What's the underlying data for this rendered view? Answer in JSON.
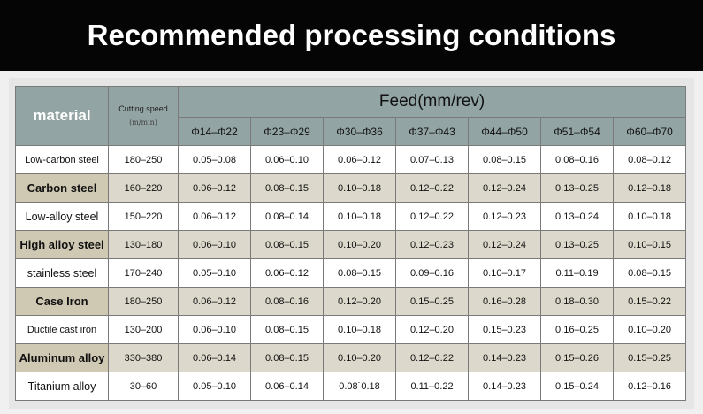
{
  "header": {
    "title": "Recommended processing conditions"
  },
  "table": {
    "material_header": "material",
    "speed_header": [
      "Cutting speed",
      "(m/min)"
    ],
    "feed_header": "Feed(mm/rev)",
    "feed_columns": [
      "Φ14–Φ22",
      "Φ23–Φ29",
      "Φ30–Φ36",
      "Φ37–Φ43",
      "Φ44–Φ50",
      "Φ51–Φ54",
      "Φ60–Φ70"
    ],
    "rows": [
      [
        "Low-carbon steel",
        "180–250",
        "0.05–0.08",
        "0.06–0.10",
        "0.06–0.12",
        "0.07–0.13",
        "0.08–0.15",
        "0.08–0.16",
        "0.08–0.12"
      ],
      [
        "Carbon steel",
        "160–220",
        "0.06–0.12",
        "0.08–0.15",
        "0.10–0.18",
        "0.12–0.22",
        "0.12–0.24",
        "0.13–0.25",
        "0.12–0.18"
      ],
      [
        "Low-alloy steel",
        "150–220",
        "0.06–0.12",
        "0.08–0.14",
        "0.10–0.18",
        "0.12–0.22",
        "0.12–0.23",
        "0.13–0.24",
        "0.10–0.18"
      ],
      [
        "High alloy steel",
        "130–180",
        "0.06–0.10",
        "0.08–0.15",
        "0.10–0.20",
        "0.12–0.23",
        "0.12–0.24",
        "0.13–0.25",
        "0.10–0.15"
      ],
      [
        "stainless steel",
        "170–240",
        "0.05–0.10",
        "0.06–0.12",
        "0.08–0.15",
        "0.09–0.16",
        "0.10–0.17",
        "0.11–0.19",
        "0.08–0.15"
      ],
      [
        "Case Iron",
        "180–250",
        "0.06–0.12",
        "0.08–0.16",
        "0.12–0.20",
        "0.15–0.25",
        "0.16–0.28",
        "0.18–0.30",
        "0.15–0.22"
      ],
      [
        "Ductile cast iron",
        "130–200",
        "0.06–0.10",
        "0.08–0.15",
        "0.10–0.18",
        "0.12–0.20",
        "0.15–0.23",
        "0.16–0.25",
        "0.10–0.20"
      ],
      [
        "Aluminum alloy",
        "330–380",
        "0.06–0.14",
        "0.08–0.15",
        "0.10–0.20",
        "0.12–0.22",
        "0.14–0.23",
        "0.15–0.26",
        "0.15–0.25"
      ],
      [
        "Titanium alloy",
        "30–60",
        "0.05–0.10",
        "0.06–0.14",
        "0.08˙0.18",
        "0.11–0.22",
        "0.14–0.23",
        "0.15–0.24",
        "0.12–0.16"
      ]
    ]
  }
}
